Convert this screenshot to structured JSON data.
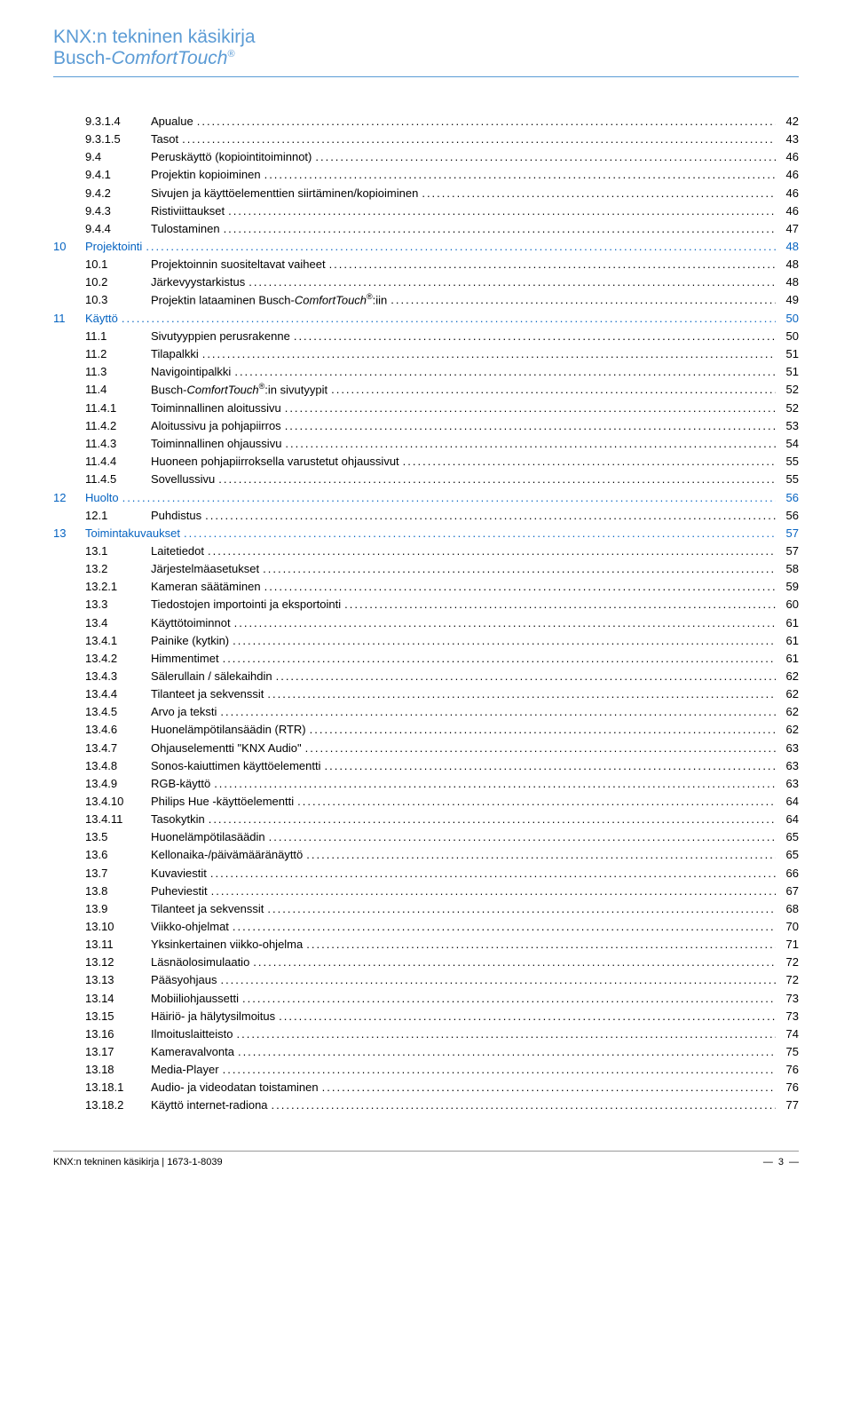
{
  "header": {
    "line1": "KNX:n tekninen käsikirja",
    "line2_prefix": "Busch-",
    "line2_italic": "ComfortTouch",
    "line2_sup": "®"
  },
  "toc": [
    {
      "level": "section",
      "num": "9.3.1.4",
      "title": "Apualue",
      "page": "42"
    },
    {
      "level": "section",
      "num": "9.3.1.5",
      "title": "Tasot",
      "page": "43"
    },
    {
      "level": "section",
      "num": "9.4",
      "title": "Peruskäyttö (kopiointitoiminnot)",
      "page": "46"
    },
    {
      "level": "section",
      "num": "9.4.1",
      "title": "Projektin kopioiminen",
      "page": "46"
    },
    {
      "level": "section",
      "num": "9.4.2",
      "title": "Sivujen ja käyttöelementtien siirtäminen/kopioiminen",
      "page": "46"
    },
    {
      "level": "section",
      "num": "9.4.3",
      "title": "Ristiviittaukset",
      "page": "46"
    },
    {
      "level": "section",
      "num": "9.4.4",
      "title": "Tulostaminen",
      "page": "47"
    },
    {
      "level": "chapter",
      "num": "10",
      "title": "Projektointi",
      "page": "48"
    },
    {
      "level": "section",
      "num": "10.1",
      "title": "Projektoinnin suositeltavat vaiheet",
      "page": "48"
    },
    {
      "level": "section",
      "num": "10.2",
      "title": "Järkevyystarkistus",
      "page": "48"
    },
    {
      "level": "section",
      "num": "10.3",
      "title_html": "Projektin lataaminen Busch-<span class='italic'>ComfortTouch</span><span class='sup-inline'>®</span>:iin",
      "page": "49"
    },
    {
      "level": "chapter",
      "num": "11",
      "title": "Käyttö",
      "page": "50"
    },
    {
      "level": "section",
      "num": "11.1",
      "title": "Sivutyyppien perusrakenne",
      "page": "50"
    },
    {
      "level": "section",
      "num": "11.2",
      "title": "Tilapalkki",
      "page": "51"
    },
    {
      "level": "section",
      "num": "11.3",
      "title": "Navigointipalkki",
      "page": "51"
    },
    {
      "level": "section",
      "num": "11.4",
      "title_html": "Busch-<span class='italic'>ComfortTouch</span><span class='sup-inline'>®</span>:in sivutyypit",
      "page": "52"
    },
    {
      "level": "section",
      "num": "11.4.1",
      "title": "Toiminnallinen aloitussivu",
      "page": "52"
    },
    {
      "level": "section",
      "num": "11.4.2",
      "title": "Aloitussivu ja pohjapiirros",
      "page": "53"
    },
    {
      "level": "section",
      "num": "11.4.3",
      "title": "Toiminnallinen ohjaussivu",
      "page": "54"
    },
    {
      "level": "section",
      "num": "11.4.4",
      "title": "Huoneen pohjapiirroksella varustetut ohjaussivut",
      "page": "55"
    },
    {
      "level": "section",
      "num": "11.4.5",
      "title": "Sovellussivu",
      "page": "55"
    },
    {
      "level": "chapter",
      "num": "12",
      "title": "Huolto",
      "page": "56"
    },
    {
      "level": "section",
      "num": "12.1",
      "title": "Puhdistus",
      "page": "56"
    },
    {
      "level": "chapter",
      "num": "13",
      "title": "Toimintakuvaukset",
      "page": "57"
    },
    {
      "level": "section",
      "num": "13.1",
      "title": "Laitetiedot",
      "page": "57"
    },
    {
      "level": "section",
      "num": "13.2",
      "title": "Järjestelmäasetukset",
      "page": "58"
    },
    {
      "level": "section",
      "num": "13.2.1",
      "title": "Kameran säätäminen",
      "page": "59"
    },
    {
      "level": "section",
      "num": "13.3",
      "title": "Tiedostojen importointi ja eksportointi",
      "page": "60"
    },
    {
      "level": "section",
      "num": "13.4",
      "title": "Käyttötoiminnot",
      "page": "61"
    },
    {
      "level": "section",
      "num": "13.4.1",
      "title": "Painike (kytkin)",
      "page": "61"
    },
    {
      "level": "section",
      "num": "13.4.2",
      "title": "Himmentimet",
      "page": "61"
    },
    {
      "level": "section",
      "num": "13.4.3",
      "title": "Sälerullain / sälekaihdin",
      "page": "62"
    },
    {
      "level": "section",
      "num": "13.4.4",
      "title": "Tilanteet ja sekvenssit",
      "page": "62"
    },
    {
      "level": "section",
      "num": "13.4.5",
      "title": "Arvo ja teksti",
      "page": "62"
    },
    {
      "level": "section",
      "num": "13.4.6",
      "title": "Huonelämpötilansäädin (RTR)",
      "page": "62"
    },
    {
      "level": "section",
      "num": "13.4.7",
      "title": "Ohjauselementti \"KNX Audio\"",
      "page": "63"
    },
    {
      "level": "section",
      "num": "13.4.8",
      "title": "Sonos-kaiuttimen käyttöelementti",
      "page": "63"
    },
    {
      "level": "section",
      "num": "13.4.9",
      "title": "RGB-käyttö",
      "page": "63"
    },
    {
      "level": "section",
      "num": "13.4.10",
      "title": "Philips Hue -käyttöelementti",
      "page": "64"
    },
    {
      "level": "section",
      "num": "13.4.11",
      "title": "Tasokytkin",
      "page": "64"
    },
    {
      "level": "section",
      "num": "13.5",
      "title": "Huonelämpötilasäädin",
      "page": "65"
    },
    {
      "level": "section",
      "num": "13.6",
      "title": "Kellonaika-/päivämääränäyttö",
      "page": "65"
    },
    {
      "level": "section",
      "num": "13.7",
      "title": "Kuvaviestit",
      "page": "66"
    },
    {
      "level": "section",
      "num": "13.8",
      "title": "Puheviestit",
      "page": "67"
    },
    {
      "level": "section",
      "num": "13.9",
      "title": "Tilanteet ja sekvenssit",
      "page": "68"
    },
    {
      "level": "section",
      "num": "13.10",
      "title": "Viikko-ohjelmat",
      "page": "70"
    },
    {
      "level": "section",
      "num": "13.11",
      "title": "Yksinkertainen viikko-ohjelma",
      "page": "71"
    },
    {
      "level": "section",
      "num": "13.12",
      "title": "Läsnäolosimulaatio",
      "page": "72"
    },
    {
      "level": "section",
      "num": "13.13",
      "title": "Pääsyohjaus",
      "page": "72"
    },
    {
      "level": "section",
      "num": "13.14",
      "title": "Mobiiliohjaussetti",
      "page": "73"
    },
    {
      "level": "section",
      "num": "13.15",
      "title": "Häiriö- ja hälytysilmoitus",
      "page": "73"
    },
    {
      "level": "section",
      "num": "13.16",
      "title": "Ilmoituslaitteisto",
      "page": "74"
    },
    {
      "level": "section",
      "num": "13.17",
      "title": "Kameravalvonta",
      "page": "75"
    },
    {
      "level": "section",
      "num": "13.18",
      "title": "Media-Player",
      "page": "76"
    },
    {
      "level": "section",
      "num": "13.18.1",
      "title": "Audio- ja videodatan toistaminen",
      "page": "76"
    },
    {
      "level": "section",
      "num": "13.18.2",
      "title": "Käyttö internet-radiona",
      "page": "77"
    }
  ],
  "footer": {
    "left": "KNX:n tekninen käsikirja | 1673-1-8039",
    "right_dash": "—",
    "right_page": "3",
    "right_dash2": "—"
  }
}
